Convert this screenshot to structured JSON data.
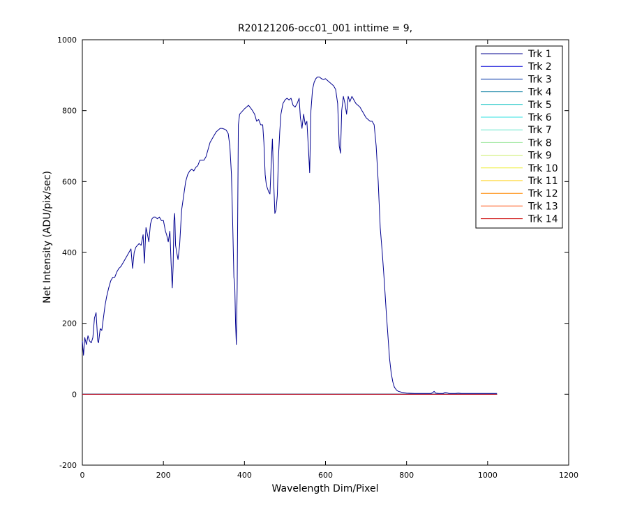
{
  "chart_data": {
    "type": "line",
    "title": "R20121206-occ01_001 inttime = 9,",
    "xlabel": "Wavelength Dim/Pixel",
    "ylabel": "Net Intensity (ADU/pix/sec)",
    "xlim": [
      0,
      1200
    ],
    "ylim": [
      -200,
      1000
    ],
    "xticks": [
      0,
      200,
      400,
      600,
      800,
      1000,
      1200
    ],
    "yticks": [
      -200,
      0,
      200,
      400,
      600,
      800,
      1000
    ],
    "xtick_labels": [
      "0",
      "200",
      "400",
      "600",
      "800",
      "1000",
      "1200"
    ],
    "ytick_labels": [
      "-200",
      "0",
      "200",
      "400",
      "600",
      "800",
      "1000"
    ],
    "grid": false,
    "legend_position": "top-right",
    "spectrum_track": "Trk 1",
    "spectrum": [
      [
        0,
        150
      ],
      [
        3,
        110
      ],
      [
        6,
        160
      ],
      [
        10,
        140
      ],
      [
        14,
        165
      ],
      [
        18,
        150
      ],
      [
        22,
        145
      ],
      [
        26,
        160
      ],
      [
        30,
        215
      ],
      [
        34,
        230
      ],
      [
        38,
        150
      ],
      [
        40,
        145
      ],
      [
        44,
        185
      ],
      [
        48,
        180
      ],
      [
        52,
        215
      ],
      [
        56,
        250
      ],
      [
        60,
        275
      ],
      [
        65,
        300
      ],
      [
        70,
        320
      ],
      [
        75,
        330
      ],
      [
        80,
        330
      ],
      [
        85,
        345
      ],
      [
        90,
        355
      ],
      [
        95,
        360
      ],
      [
        100,
        370
      ],
      [
        105,
        380
      ],
      [
        110,
        390
      ],
      [
        115,
        400
      ],
      [
        120,
        410
      ],
      [
        124,
        355
      ],
      [
        128,
        400
      ],
      [
        132,
        415
      ],
      [
        136,
        420
      ],
      [
        140,
        425
      ],
      [
        145,
        420
      ],
      [
        150,
        450
      ],
      [
        153,
        370
      ],
      [
        157,
        470
      ],
      [
        160,
        455
      ],
      [
        164,
        430
      ],
      [
        168,
        480
      ],
      [
        172,
        495
      ],
      [
        176,
        500
      ],
      [
        180,
        500
      ],
      [
        185,
        495
      ],
      [
        190,
        500
      ],
      [
        195,
        490
      ],
      [
        200,
        490
      ],
      [
        205,
        460
      ],
      [
        208,
        450
      ],
      [
        212,
        430
      ],
      [
        216,
        460
      ],
      [
        219,
        370
      ],
      [
        222,
        300
      ],
      [
        224,
        360
      ],
      [
        226,
        490
      ],
      [
        228,
        510
      ],
      [
        230,
        420
      ],
      [
        233,
        400
      ],
      [
        236,
        380
      ],
      [
        240,
        420
      ],
      [
        245,
        520
      ],
      [
        250,
        560
      ],
      [
        255,
        600
      ],
      [
        260,
        620
      ],
      [
        265,
        630
      ],
      [
        270,
        635
      ],
      [
        275,
        630
      ],
      [
        280,
        640
      ],
      [
        285,
        645
      ],
      [
        290,
        660
      ],
      [
        295,
        660
      ],
      [
        300,
        660
      ],
      [
        305,
        670
      ],
      [
        310,
        690
      ],
      [
        315,
        710
      ],
      [
        320,
        720
      ],
      [
        325,
        730
      ],
      [
        330,
        740
      ],
      [
        335,
        745
      ],
      [
        340,
        750
      ],
      [
        345,
        750
      ],
      [
        350,
        748
      ],
      [
        355,
        745
      ],
      [
        360,
        735
      ],
      [
        364,
        700
      ],
      [
        368,
        620
      ],
      [
        371,
        480
      ],
      [
        374,
        330
      ],
      [
        376,
        310
      ],
      [
        378,
        200
      ],
      [
        380,
        140
      ],
      [
        382,
        300
      ],
      [
        385,
        760
      ],
      [
        388,
        790
      ],
      [
        392,
        795
      ],
      [
        396,
        800
      ],
      [
        400,
        805
      ],
      [
        405,
        810
      ],
      [
        410,
        815
      ],
      [
        415,
        808
      ],
      [
        420,
        800
      ],
      [
        425,
        790
      ],
      [
        430,
        770
      ],
      [
        435,
        775
      ],
      [
        440,
        760
      ],
      [
        445,
        760
      ],
      [
        448,
        710
      ],
      [
        451,
        620
      ],
      [
        454,
        590
      ],
      [
        457,
        580
      ],
      [
        460,
        570
      ],
      [
        463,
        565
      ],
      [
        466,
        650
      ],
      [
        469,
        720
      ],
      [
        472,
        600
      ],
      [
        475,
        510
      ],
      [
        478,
        520
      ],
      [
        481,
        560
      ],
      [
        484,
        670
      ],
      [
        487,
        740
      ],
      [
        490,
        790
      ],
      [
        495,
        820
      ],
      [
        500,
        830
      ],
      [
        505,
        835
      ],
      [
        510,
        830
      ],
      [
        515,
        835
      ],
      [
        520,
        815
      ],
      [
        525,
        810
      ],
      [
        530,
        820
      ],
      [
        535,
        835
      ],
      [
        538,
        780
      ],
      [
        542,
        750
      ],
      [
        546,
        790
      ],
      [
        550,
        760
      ],
      [
        554,
        770
      ],
      [
        558,
        690
      ],
      [
        561,
        625
      ],
      [
        564,
        800
      ],
      [
        568,
        860
      ],
      [
        572,
        880
      ],
      [
        576,
        890
      ],
      [
        580,
        895
      ],
      [
        585,
        895
      ],
      [
        590,
        890
      ],
      [
        595,
        888
      ],
      [
        600,
        890
      ],
      [
        605,
        885
      ],
      [
        610,
        880
      ],
      [
        615,
        875
      ],
      [
        620,
        870
      ],
      [
        625,
        860
      ],
      [
        630,
        820
      ],
      [
        634,
        700
      ],
      [
        637,
        680
      ],
      [
        640,
        800
      ],
      [
        644,
        840
      ],
      [
        648,
        820
      ],
      [
        652,
        790
      ],
      [
        656,
        840
      ],
      [
        660,
        825
      ],
      [
        665,
        840
      ],
      [
        670,
        830
      ],
      [
        675,
        820
      ],
      [
        680,
        815
      ],
      [
        685,
        810
      ],
      [
        690,
        800
      ],
      [
        695,
        790
      ],
      [
        700,
        780
      ],
      [
        705,
        775
      ],
      [
        710,
        770
      ],
      [
        715,
        770
      ],
      [
        720,
        760
      ],
      [
        725,
        700
      ],
      [
        730,
        600
      ],
      [
        735,
        470
      ],
      [
        740,
        400
      ],
      [
        745,
        320
      ],
      [
        750,
        230
      ],
      [
        755,
        150
      ],
      [
        758,
        100
      ],
      [
        762,
        60
      ],
      [
        766,
        35
      ],
      [
        770,
        20
      ],
      [
        775,
        12
      ],
      [
        780,
        8
      ],
      [
        790,
        5
      ],
      [
        800,
        3
      ],
      [
        820,
        2
      ],
      [
        840,
        2
      ],
      [
        860,
        2
      ],
      [
        865,
        5
      ],
      [
        868,
        8
      ],
      [
        872,
        3
      ],
      [
        880,
        2
      ],
      [
        890,
        2
      ],
      [
        895,
        5
      ],
      [
        900,
        4
      ],
      [
        905,
        2
      ],
      [
        920,
        2
      ],
      [
        928,
        3
      ],
      [
        935,
        2
      ],
      [
        960,
        2
      ],
      [
        1000,
        2
      ],
      [
        1023,
        2
      ]
    ],
    "flat_value": 0,
    "flat_xrange": [
      0,
      1023
    ],
    "series": [
      {
        "name": "Trk 1",
        "color": "#00008f"
      },
      {
        "name": "Trk 2",
        "color": "#0000d6"
      },
      {
        "name": "Trk 3",
        "color": "#0033a8"
      },
      {
        "name": "Trk 4",
        "color": "#007a9e"
      },
      {
        "name": "Trk 5",
        "color": "#00bfbf"
      },
      {
        "name": "Trk 6",
        "color": "#33e0e0"
      },
      {
        "name": "Trk 7",
        "color": "#66e6cc"
      },
      {
        "name": "Trk 8",
        "color": "#99e699"
      },
      {
        "name": "Trk 9",
        "color": "#ccee66"
      },
      {
        "name": "Trk 10",
        "color": "#eeee33"
      },
      {
        "name": "Trk 11",
        "color": "#ffcc00"
      },
      {
        "name": "Trk 12",
        "color": "#ff8800"
      },
      {
        "name": "Trk 13",
        "color": "#ff4400"
      },
      {
        "name": "Trk 14",
        "color": "#cc0000"
      }
    ]
  }
}
